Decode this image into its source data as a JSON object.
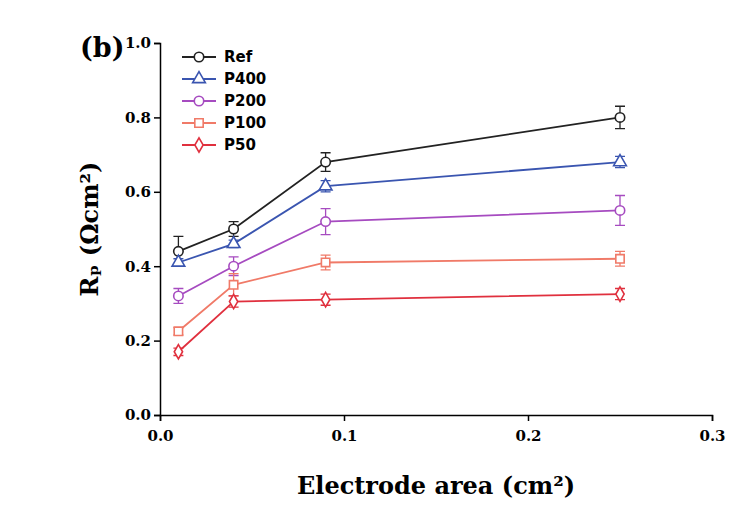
{
  "chart_data": {
    "type": "line",
    "title": "(b)",
    "x_label": "Electrode area (cm²)",
    "y_label": "Rₚ (Ωcm²)",
    "x": [
      0.01,
      0.04,
      0.09,
      0.25
    ],
    "xlim": [
      0,
      0.3
    ],
    "xticks": [
      {
        "value": 0,
        "label": "0.0"
      },
      0.1,
      0.2,
      0.3
    ],
    "ylim": [
      0,
      1
    ],
    "yticks": [
      {
        "value": 0,
        "label": "0.0"
      },
      0.2,
      0.4,
      0.6,
      0.8,
      {
        "value": 1,
        "label": "1.0"
      }
    ],
    "legend": "upper left",
    "grid": false,
    "series": [
      {
        "name": "Ref",
        "color": "#222222",
        "marker": "circle",
        "values": [
          0.44,
          0.5,
          0.68,
          0.8
        ],
        "errors": [
          0.04,
          0.02,
          0.025,
          0.03
        ]
      },
      {
        "name": "P400",
        "color": "#3a55b0",
        "marker": "triangle",
        "values": [
          0.41,
          0.46,
          0.615,
          0.68
        ],
        "errors": [
          0.01,
          0.01,
          0.015,
          0.015
        ]
      },
      {
        "name": "P200",
        "color": "#a64bc0",
        "marker": "circle",
        "values": [
          0.32,
          0.4,
          0.52,
          0.55
        ],
        "errors": [
          0.02,
          0.025,
          0.035,
          0.04
        ]
      },
      {
        "name": "P100",
        "color": "#f07a68",
        "marker": "square",
        "values": [
          0.225,
          0.35,
          0.41,
          0.42
        ],
        "errors": [
          0.01,
          0.03,
          0.02,
          0.02
        ]
      },
      {
        "name": "P50",
        "color": "#e0303e",
        "marker": "diamond",
        "values": [
          0.17,
          0.305,
          0.31,
          0.325
        ],
        "errors": [
          0.01,
          0.015,
          0.015,
          0.015
        ]
      }
    ]
  }
}
